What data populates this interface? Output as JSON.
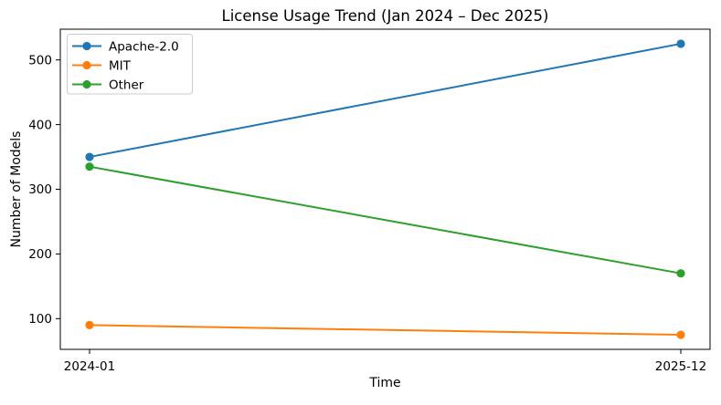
{
  "figure": {
    "background": "#ffffff",
    "spine_color": "#000000",
    "legend_border_color": "#cccccc",
    "legend_background": "#ffffff"
  },
  "chart_data": {
    "type": "line",
    "title": "License Usage Trend (Jan 2024 – Dec 2025)",
    "xlabel": "Time",
    "ylabel": "Number of Models",
    "categories": [
      "2024-01",
      "2025-12"
    ],
    "series": [
      {
        "name": "Apache-2.0",
        "color": "#1f77b4",
        "values": [
          350,
          525
        ]
      },
      {
        "name": "MIT",
        "color": "#ff7f0e",
        "values": [
          90,
          75
        ]
      },
      {
        "name": "Other",
        "color": "#2ca02c",
        "values": [
          335,
          170
        ]
      }
    ],
    "yticks": [
      100,
      200,
      300,
      400,
      500
    ],
    "ylim": [
      52.5,
      547.5
    ],
    "grid": false,
    "marker": "o",
    "legend_position": "upper left"
  }
}
